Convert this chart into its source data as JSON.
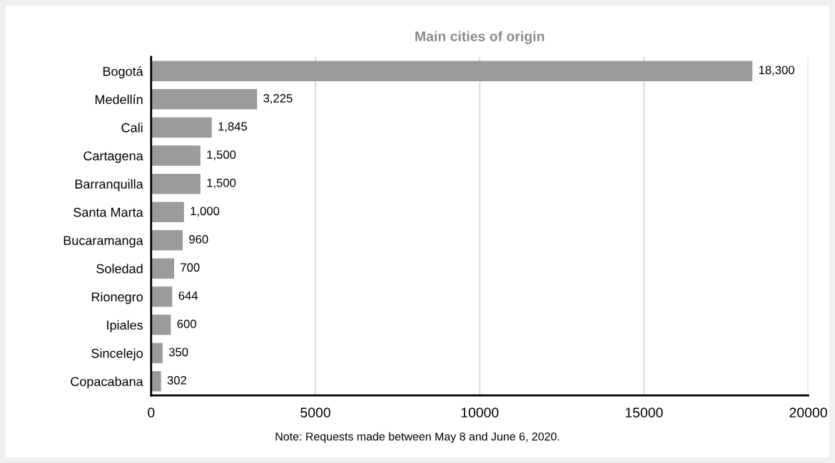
{
  "chart_data": {
    "type": "bar",
    "orientation": "horizontal",
    "title": "Main cities of origin",
    "categories": [
      "Bogotá",
      "Medellín",
      "Cali",
      "Cartagena",
      "Barranquilla",
      "Santa Marta",
      "Bucaramanga",
      "Soledad",
      "Rionegro",
      "Ipiales",
      "Sincelejo",
      "Copacabana"
    ],
    "values": [
      18300,
      3225,
      1845,
      1500,
      1500,
      1000,
      960,
      700,
      644,
      600,
      350,
      302
    ],
    "value_labels": [
      "18,300",
      "3,225",
      "1,845",
      "1,500",
      "1,500",
      "1,000",
      "960",
      "700",
      "644",
      "600",
      "350",
      "302"
    ],
    "color": "#9b9b9b",
    "xlim": [
      0,
      20000
    ],
    "xticks": [
      0,
      5000,
      10000,
      15000,
      20000
    ],
    "grid": "x",
    "annotations": [
      "Note: Requests made between May 8 and June 6, 2020."
    ]
  }
}
